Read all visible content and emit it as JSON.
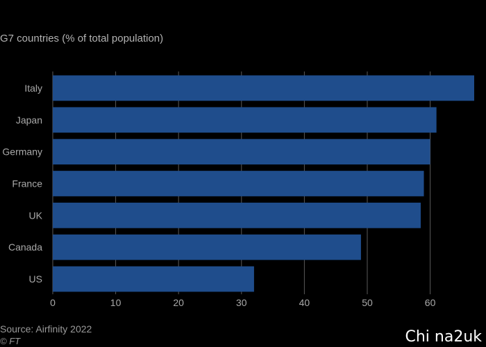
{
  "subtitle": "G7 countries (% of total population)",
  "source": "Source: Airfinity 2022",
  "credit": "© FT",
  "watermark": "Chi na2uk",
  "colors": {
    "background": "#000000",
    "bar": "#1f4d8c",
    "grid": "#5a5a5a",
    "tick_text": "#a9a9a9"
  },
  "chart_data": {
    "type": "bar",
    "orientation": "horizontal",
    "title": "",
    "subtitle": "G7 countries (% of total population)",
    "categories": [
      "Italy",
      "Japan",
      "Germany",
      "France",
      "UK",
      "Canada",
      "US"
    ],
    "values": [
      67,
      61,
      60,
      59,
      58.5,
      49,
      32
    ],
    "xlim": [
      0,
      67
    ],
    "xticks": [
      0,
      10,
      20,
      30,
      40,
      50,
      60
    ],
    "xlabel": "",
    "ylabel": "",
    "grid": true
  }
}
